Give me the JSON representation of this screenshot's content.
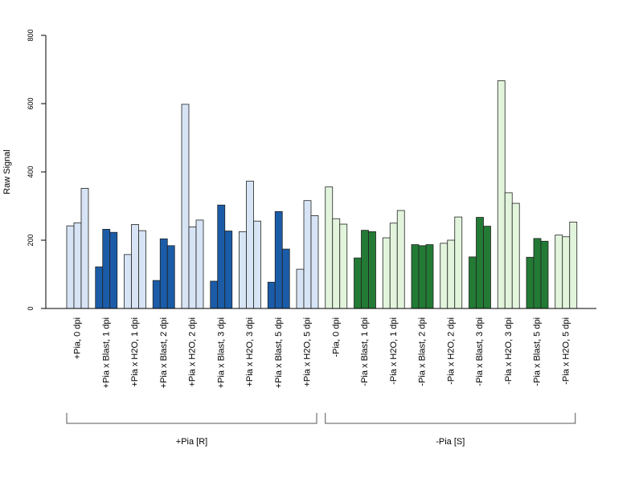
{
  "chart_data": {
    "type": "bar",
    "ylabel": "Raw Signal",
    "ylim": [
      0,
      800
    ],
    "yticks": [
      0,
      200,
      400,
      600,
      800
    ],
    "grid": false,
    "categories": [
      "+Pia, 0 dpi",
      "+Pia x Blast, 1 dpi",
      "+Pia x H2O, 1 dpi",
      "+Pia x Blast, 2 dpi",
      "+Pia x H2O, 2 dpi",
      "+Pia x Blast, 3 dpi",
      "+Pia x H2O, 3 dpi",
      "+Pia x Blast, 5 dpi",
      "+Pia x H2O, 5 dpi",
      "-Pia, 0 dpi",
      "-Pia x Blast, 1 dpi",
      "-Pia x H2O, 1 dpi",
      "-Pia x Blast, 2 dpi",
      "-Pia x H2O, 2 dpi",
      "-Pia x Blast, 3 dpi",
      "-Pia x H2O, 3 dpi",
      "-Pia x Blast, 5 dpi",
      "-Pia x H2O, 5 dpi"
    ],
    "values": [
      [
        242,
        251,
        352
      ],
      [
        122,
        232,
        223
      ],
      [
        158,
        246,
        228
      ],
      [
        82,
        204,
        184
      ],
      [
        598,
        239,
        259
      ],
      [
        80,
        303,
        227
      ],
      [
        225,
        373,
        256
      ],
      [
        77,
        284,
        174
      ],
      [
        115,
        316,
        272
      ],
      [
        356,
        263,
        247
      ],
      [
        148,
        229,
        225
      ],
      [
        207,
        250,
        287
      ],
      [
        187,
        184,
        187
      ],
      [
        191,
        200,
        268
      ],
      [
        151,
        267,
        241
      ],
      [
        667,
        339,
        308
      ],
      [
        150,
        205,
        197
      ],
      [
        215,
        210,
        253
      ]
    ],
    "groups": [
      {
        "label": "+Pia [R]",
        "start": 0,
        "end": 8
      },
      {
        "label": "-Pia [S]",
        "start": 9,
        "end": 17
      }
    ],
    "colors": {
      "R_light": "#d6e4f5",
      "R_dark": "#1b5ca8",
      "S_light": "#e2f5dc",
      "S_dark": "#237a35",
      "axis": "#000000"
    }
  }
}
